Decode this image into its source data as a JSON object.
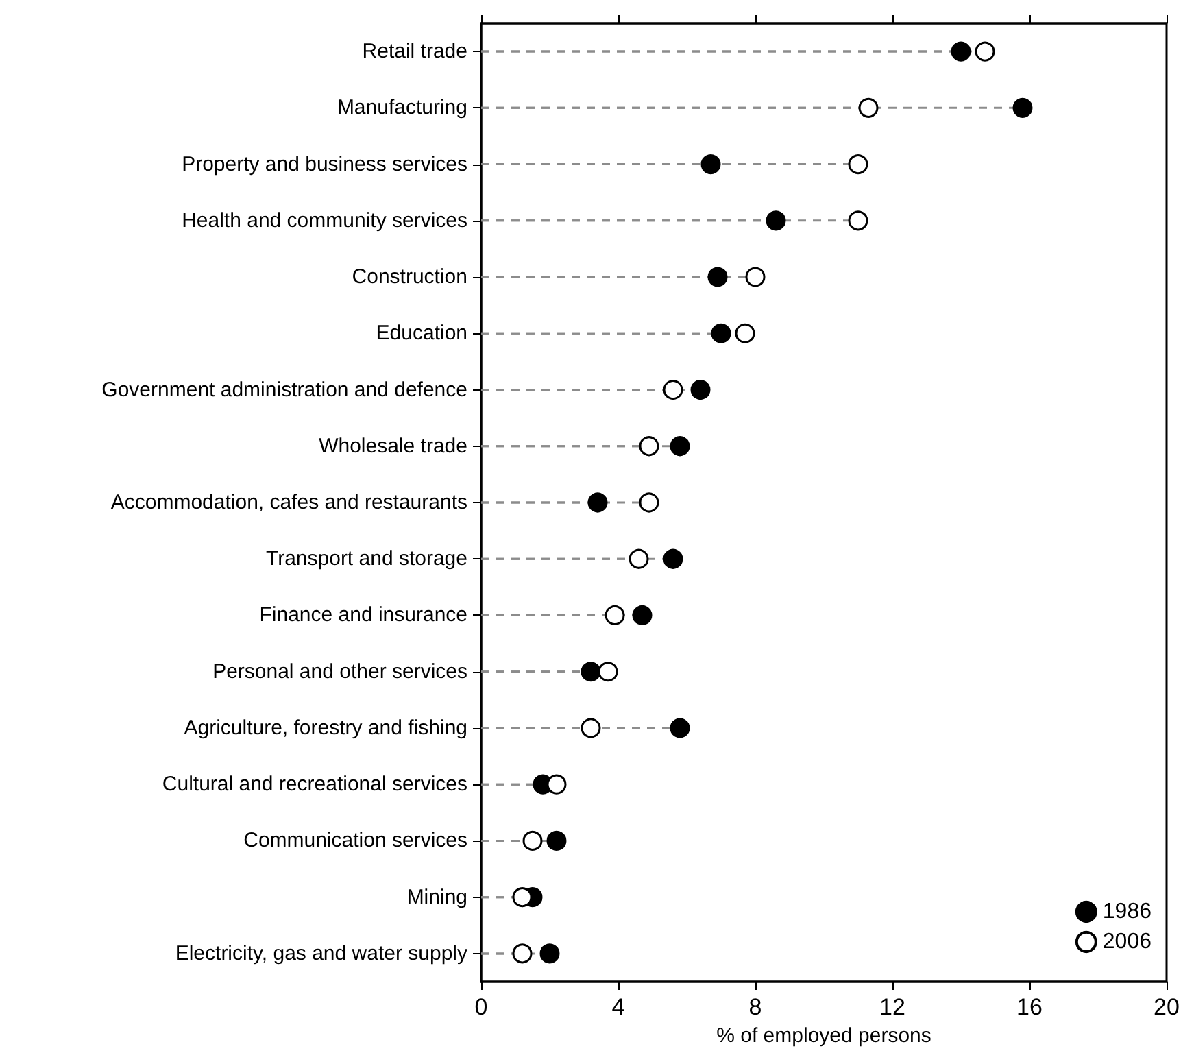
{
  "chart_data": {
    "type": "lollipop",
    "orientation": "horizontal",
    "xlabel": "% of employed persons",
    "categories": [
      "Retail trade",
      "Manufacturing",
      "Property and business services",
      "Health and community services",
      "Construction",
      "Education",
      "Government administration and defence",
      "Wholesale trade",
      "Accommodation, cafes and restaurants",
      "Transport and storage",
      "Finance and insurance",
      "Personal and other services",
      "Agriculture, forestry and fishing",
      "Cultural and recreational services",
      "Communication services",
      "Mining",
      "Electricity, gas and water supply"
    ],
    "series": [
      {
        "name": "1986",
        "color": "#000000",
        "values": [
          14.0,
          15.8,
          6.7,
          8.6,
          6.9,
          7.0,
          6.4,
          5.8,
          3.4,
          5.6,
          4.7,
          3.2,
          5.8,
          1.8,
          2.2,
          1.5,
          2.0
        ]
      },
      {
        "name": "2006",
        "color": "#ffffff",
        "values": [
          14.7,
          11.3,
          11.0,
          11.0,
          8.0,
          7.7,
          5.6,
          4.9,
          4.9,
          4.6,
          3.9,
          3.7,
          3.2,
          2.2,
          1.5,
          1.2,
          1.2
        ]
      }
    ],
    "xlim": [
      0,
      20
    ],
    "xticks": [
      0,
      4,
      8,
      12,
      16,
      20
    ],
    "grid": false,
    "legend": "bottom right",
    "marker": "circle",
    "line_style": "dashed"
  }
}
